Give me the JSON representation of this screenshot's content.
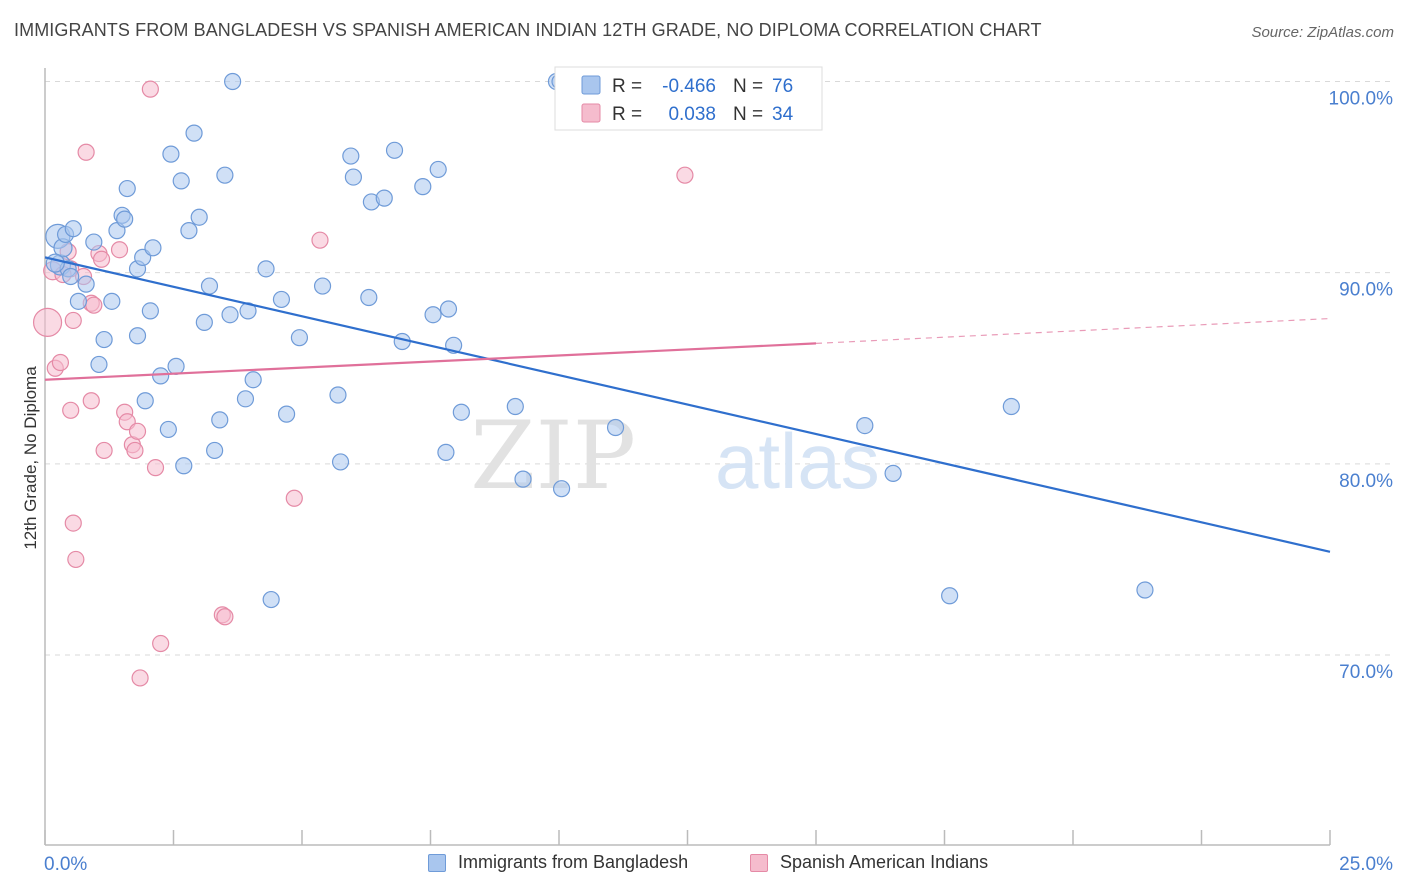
{
  "title": "IMMIGRANTS FROM BANGLADESH VS SPANISH AMERICAN INDIAN 12TH GRADE, NO DIPLOMA CORRELATION CHART",
  "source": "Source: ZipAtlas.com",
  "watermark": {
    "zip": "ZIP",
    "atlas": "atlas"
  },
  "colors": {
    "blue_fill": "#a9c6ee",
    "blue_stroke": "#6f9bd8",
    "blue_line": "#2f6fcd",
    "pink_fill": "#f5bccd",
    "pink_stroke": "#e58aa6",
    "pink_line": "#e0709a",
    "axis_text": "#4a7fcf",
    "grid": "#d9d9d9"
  },
  "legend_top": {
    "rows": [
      {
        "r_label": "R =",
        "r_value": "-0.466",
        "n_label": "N =",
        "n_value": "76"
      },
      {
        "r_label": "R =",
        "r_value": "0.038",
        "n_label": "N =",
        "n_value": "34"
      }
    ]
  },
  "legend_bottom": {
    "items": [
      "Immigrants from Bangladesh",
      "Spanish American Indians"
    ]
  },
  "chart_data": {
    "type": "scatter",
    "title": "IMMIGRANTS FROM BANGLADESH VS SPANISH AMERICAN INDIAN 12TH GRADE, NO DIPLOMA CORRELATION CHART",
    "xlabel": "",
    "ylabel": "12th Grade, No Diploma",
    "xlim": [
      0,
      25
    ],
    "ylim": [
      60,
      102
    ],
    "x_tick_labels": [
      "0.0%",
      "25.0%"
    ],
    "y_ticks": [
      70,
      80,
      90,
      100
    ],
    "y_tick_labels": [
      "70.0%",
      "80.0%",
      "90.0%",
      "100.0%"
    ],
    "grid": true,
    "series": [
      {
        "name": "Immigrants from Bangladesh",
        "color": "blue",
        "R": -0.466,
        "N": 76,
        "trend": {
          "x": [
            0,
            25
          ],
          "y": [
            90.8,
            75.4
          ]
        },
        "points": [
          [
            0.25,
            91.9,
            12
          ],
          [
            0.3,
            90.4,
            10
          ],
          [
            0.35,
            91.3,
            9
          ],
          [
            0.4,
            92.0,
            8
          ],
          [
            0.45,
            90.2,
            8
          ],
          [
            0.55,
            92.3,
            8
          ],
          [
            0.65,
            88.5,
            8
          ],
          [
            0.8,
            89.4,
            8
          ],
          [
            0.95,
            91.6,
            8
          ],
          [
            1.05,
            85.2,
            8
          ],
          [
            1.15,
            86.5,
            8
          ],
          [
            1.3,
            88.5,
            8
          ],
          [
            1.4,
            92.2,
            8
          ],
          [
            1.5,
            93.0,
            8
          ],
          [
            1.55,
            92.8,
            8
          ],
          [
            1.6,
            94.4,
            8
          ],
          [
            1.8,
            86.7,
            8
          ],
          [
            1.8,
            90.2,
            8
          ],
          [
            1.9,
            90.8,
            8
          ],
          [
            1.95,
            83.3,
            8
          ],
          [
            2.05,
            88.0,
            8
          ],
          [
            2.1,
            91.3,
            8
          ],
          [
            2.25,
            84.6,
            8
          ],
          [
            2.4,
            81.8,
            8
          ],
          [
            2.45,
            96.2,
            8
          ],
          [
            2.55,
            85.1,
            8
          ],
          [
            2.65,
            94.8,
            8
          ],
          [
            2.7,
            79.9,
            8
          ],
          [
            2.8,
            92.2,
            8
          ],
          [
            2.9,
            97.3,
            8
          ],
          [
            3.0,
            92.9,
            8
          ],
          [
            3.1,
            87.4,
            8
          ],
          [
            3.2,
            89.3,
            8
          ],
          [
            3.3,
            80.7,
            8
          ],
          [
            3.4,
            82.3,
            8
          ],
          [
            3.5,
            95.1,
            8
          ],
          [
            3.6,
            87.8,
            8
          ],
          [
            3.65,
            100.0,
            8
          ],
          [
            3.9,
            83.4,
            8
          ],
          [
            3.95,
            88.0,
            8
          ],
          [
            4.05,
            84.4,
            8
          ],
          [
            4.3,
            90.2,
            8
          ],
          [
            4.4,
            72.9,
            8
          ],
          [
            4.6,
            88.6,
            8
          ],
          [
            4.7,
            82.6,
            8
          ],
          [
            4.95,
            86.6,
            8
          ],
          [
            5.4,
            89.3,
            8
          ],
          [
            5.7,
            83.6,
            8
          ],
          [
            5.75,
            80.1,
            8
          ],
          [
            5.95,
            96.1,
            8
          ],
          [
            6.0,
            95.0,
            8
          ],
          [
            6.3,
            88.7,
            8
          ],
          [
            6.35,
            93.7,
            8
          ],
          [
            6.6,
            93.9,
            8
          ],
          [
            6.8,
            96.4,
            8
          ],
          [
            6.95,
            86.4,
            8
          ],
          [
            7.35,
            94.5,
            8
          ],
          [
            7.55,
            87.8,
            8
          ],
          [
            7.65,
            95.4,
            8
          ],
          [
            7.8,
            80.6,
            8
          ],
          [
            7.85,
            88.1,
            8
          ],
          [
            7.95,
            86.2,
            8
          ],
          [
            8.1,
            82.7,
            8
          ],
          [
            9.15,
            83.0,
            8
          ],
          [
            9.3,
            79.2,
            8
          ],
          [
            9.95,
            100.0,
            8
          ],
          [
            10.0,
            100.0,
            7
          ],
          [
            10.05,
            78.7,
            8
          ],
          [
            11.1,
            81.9,
            8
          ],
          [
            15.95,
            82.0,
            8
          ],
          [
            16.5,
            79.5,
            8
          ],
          [
            17.6,
            73.1,
            8
          ],
          [
            18.8,
            83.0,
            8
          ],
          [
            21.4,
            73.4,
            8
          ],
          [
            0.2,
            90.5,
            9
          ],
          [
            0.5,
            89.8,
            8
          ]
        ]
      },
      {
        "name": "Spanish American Indians",
        "color": "pink",
        "R": 0.038,
        "N": 34,
        "trend": {
          "x": [
            0,
            15
          ],
          "y": [
            84.4,
            86.3
          ]
        },
        "trend_dashed": {
          "x": [
            15,
            25
          ],
          "y": [
            86.3,
            87.6
          ]
        },
        "points": [
          [
            0.05,
            87.4,
            14
          ],
          [
            0.15,
            90.1,
            9
          ],
          [
            0.2,
            85.0,
            8
          ],
          [
            0.3,
            85.3,
            8
          ],
          [
            0.45,
            91.1,
            8
          ],
          [
            0.5,
            90.2,
            8
          ],
          [
            0.5,
            82.8,
            8
          ],
          [
            0.55,
            87.5,
            8
          ],
          [
            0.55,
            76.9,
            8
          ],
          [
            0.6,
            75.0,
            8
          ],
          [
            0.75,
            89.8,
            8
          ],
          [
            0.8,
            96.3,
            8
          ],
          [
            0.9,
            88.4,
            8
          ],
          [
            0.9,
            83.3,
            8
          ],
          [
            0.95,
            88.3,
            8
          ],
          [
            1.05,
            91.0,
            8
          ],
          [
            1.1,
            90.7,
            8
          ],
          [
            1.15,
            80.7,
            8
          ],
          [
            1.45,
            91.2,
            8
          ],
          [
            1.55,
            82.7,
            8
          ],
          [
            1.6,
            82.2,
            8
          ],
          [
            1.7,
            81.0,
            8
          ],
          [
            1.75,
            80.7,
            8
          ],
          [
            1.8,
            81.7,
            8
          ],
          [
            1.85,
            68.8,
            8
          ],
          [
            2.05,
            99.6,
            8
          ],
          [
            2.15,
            79.8,
            8
          ],
          [
            2.25,
            70.6,
            8
          ],
          [
            3.45,
            72.1,
            8
          ],
          [
            3.5,
            72.0,
            8
          ],
          [
            4.85,
            78.2,
            8
          ],
          [
            5.35,
            91.7,
            8
          ],
          [
            12.45,
            95.1,
            8
          ],
          [
            0.35,
            89.9,
            8
          ]
        ]
      }
    ]
  }
}
